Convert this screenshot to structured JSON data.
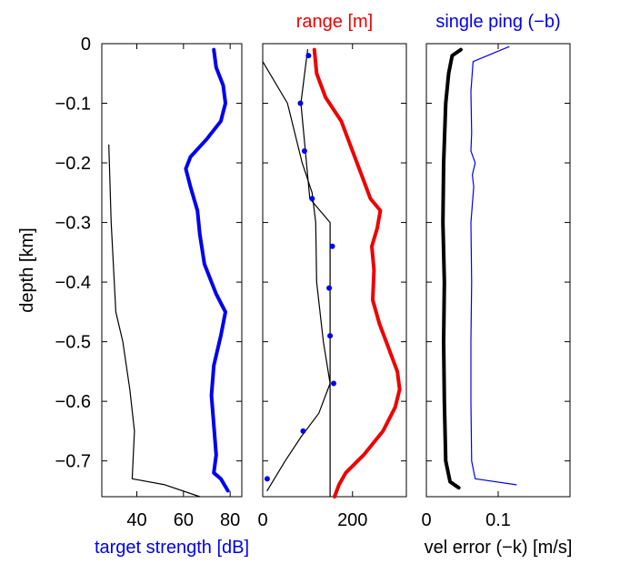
{
  "chart_data": [
    {
      "type": "line",
      "panel": "left",
      "xlabel": "target strength [dB]",
      "ylabel": "depth [km]",
      "xlim": [
        25,
        85
      ],
      "ylim": [
        -0.76,
        0
      ],
      "xticks": [
        "40",
        "60",
        "80"
      ],
      "yticks": [
        "0",
        "−0.1",
        "−0.2",
        "−0.3",
        "−0.4",
        "−0.5",
        "−0.6",
        "−0.7"
      ],
      "series": [
        {
          "color": "#0000ee",
          "style": "thick",
          "points": [
            [
              73,
              -0.01
            ],
            [
              74,
              -0.04
            ],
            [
              77,
              -0.07
            ],
            [
              78,
              -0.1
            ],
            [
              76,
              -0.13
            ],
            [
              70,
              -0.16
            ],
            [
              63,
              -0.19
            ],
            [
              61,
              -0.21
            ],
            [
              63,
              -0.24
            ],
            [
              66,
              -0.28
            ],
            [
              67,
              -0.32
            ],
            [
              69,
              -0.37
            ],
            [
              74,
              -0.42
            ],
            [
              78,
              -0.45
            ],
            [
              76,
              -0.49
            ],
            [
              73,
              -0.54
            ],
            [
              72,
              -0.59
            ],
            [
              73,
              -0.64
            ],
            [
              74,
              -0.69
            ],
            [
              73,
              -0.72
            ],
            [
              76,
              -0.73
            ],
            [
              79,
              -0.75
            ]
          ]
        },
        {
          "color": "#000000",
          "style": "thin",
          "points": [
            [
              28,
              -0.17
            ],
            [
              29,
              -0.3
            ],
            [
              31,
              -0.45
            ],
            [
              34,
              -0.5
            ],
            [
              37,
              -0.58
            ],
            [
              39,
              -0.65
            ],
            [
              38,
              -0.73
            ],
            [
              52,
              -0.74
            ],
            [
              67,
              -0.76
            ]
          ]
        }
      ]
    },
    {
      "type": "line",
      "panel": "middle",
      "title": "range [m]",
      "title_color": "#ee0000",
      "xlim": [
        0,
        320
      ],
      "ylim": [
        -0.76,
        0
      ],
      "xticks": [
        "0",
        "200"
      ],
      "series": [
        {
          "color": "#ee0000",
          "style": "thick",
          "points": [
            [
              115,
              -0.01
            ],
            [
              120,
              -0.05
            ],
            [
              140,
              -0.09
            ],
            [
              175,
              -0.13
            ],
            [
              195,
              -0.17
            ],
            [
              210,
              -0.2
            ],
            [
              225,
              -0.23
            ],
            [
              240,
              -0.26
            ],
            [
              262,
              -0.28
            ],
            [
              255,
              -0.31
            ],
            [
              243,
              -0.34
            ],
            [
              248,
              -0.38
            ],
            [
              245,
              -0.43
            ],
            [
              260,
              -0.47
            ],
            [
              280,
              -0.51
            ],
            [
              300,
              -0.55
            ],
            [
              305,
              -0.58
            ],
            [
              295,
              -0.61
            ],
            [
              268,
              -0.65
            ],
            [
              225,
              -0.69
            ],
            [
              185,
              -0.72
            ],
            [
              170,
              -0.74
            ],
            [
              160,
              -0.76
            ]
          ]
        },
        {
          "color": "#000000",
          "style": "thin",
          "points": [
            [
              100,
              -0.01
            ],
            [
              85,
              -0.1
            ],
            [
              95,
              -0.18
            ],
            [
              105,
              -0.26
            ],
            [
              150,
              -0.3
            ],
            [
              150,
              -0.76
            ]
          ]
        },
        {
          "color": "#000000",
          "style": "thin",
          "points": [
            [
              0,
              -0.03
            ],
            [
              55,
              -0.1
            ],
            [
              88,
              -0.2
            ],
            [
              110,
              -0.25
            ],
            [
              118,
              -0.3
            ],
            [
              120,
              -0.4
            ],
            [
              135,
              -0.5
            ],
            [
              150,
              -0.57
            ],
            [
              125,
              -0.62
            ],
            [
              85,
              -0.66
            ],
            [
              50,
              -0.7
            ],
            [
              10,
              -0.75
            ]
          ]
        },
        {
          "color": "#0000ee",
          "style": "markers",
          "points": [
            [
              102,
              -0.02
            ],
            [
              84,
              -0.1
            ],
            [
              93,
              -0.18
            ],
            [
              110,
              -0.26
            ],
            [
              155,
              -0.34
            ],
            [
              148,
              -0.41
            ],
            [
              150,
              -0.49
            ],
            [
              158,
              -0.57
            ],
            [
              90,
              -0.65
            ],
            [
              10,
              -0.73
            ]
          ]
        }
      ]
    },
    {
      "type": "line",
      "panel": "right",
      "title": "single ping (−b)",
      "title_color": "#0000ee",
      "xlabel": "vel error (−k) [m/s]",
      "xlim": [
        0,
        0.2
      ],
      "ylim": [
        -0.76,
        0
      ],
      "xticks": [
        "0",
        "0.1"
      ],
      "series": [
        {
          "color": "#000000",
          "style": "thick",
          "points": [
            [
              0.048,
              -0.01
            ],
            [
              0.036,
              -0.02
            ],
            [
              0.031,
              -0.05
            ],
            [
              0.027,
              -0.1
            ],
            [
              0.024,
              -0.2
            ],
            [
              0.023,
              -0.3
            ],
            [
              0.025,
              -0.4
            ],
            [
              0.024,
              -0.5
            ],
            [
              0.025,
              -0.6
            ],
            [
              0.027,
              -0.7
            ],
            [
              0.033,
              -0.735
            ],
            [
              0.045,
              -0.745
            ]
          ]
        },
        {
          "color": "#0000ee",
          "style": "thin",
          "points": [
            [
              0.115,
              -0.005
            ],
            [
              0.065,
              -0.03
            ],
            [
              0.062,
              -0.08
            ],
            [
              0.063,
              -0.15
            ],
            [
              0.062,
              -0.18
            ],
            [
              0.068,
              -0.2
            ],
            [
              0.064,
              -0.22
            ],
            [
              0.066,
              -0.24
            ],
            [
              0.062,
              -0.3
            ],
            [
              0.063,
              -0.4
            ],
            [
              0.062,
              -0.5
            ],
            [
              0.062,
              -0.6
            ],
            [
              0.063,
              -0.7
            ],
            [
              0.068,
              -0.73
            ],
            [
              0.125,
              -0.74
            ]
          ]
        }
      ]
    }
  ]
}
